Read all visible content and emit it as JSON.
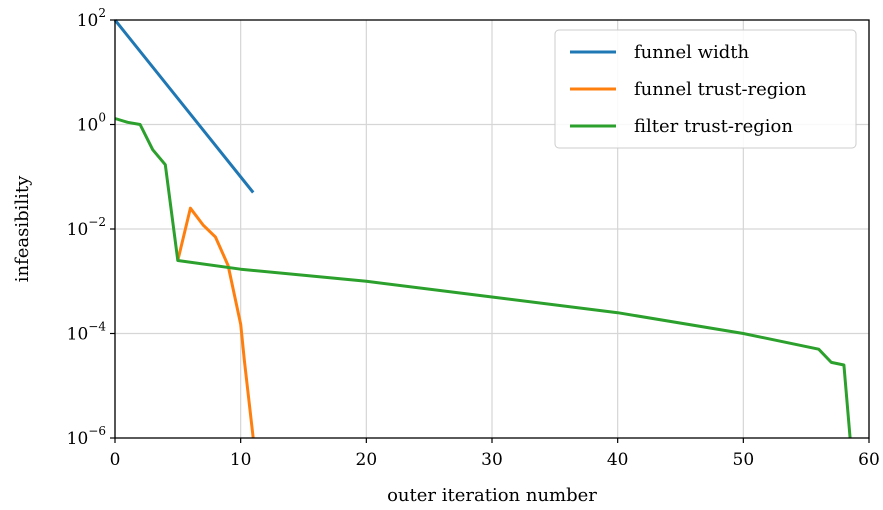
{
  "chart_data": {
    "type": "line",
    "xlabel": "outer iteration number",
    "ylabel": "infeasibility",
    "xlim": [
      0,
      60
    ],
    "ylim": [
      1e-06,
      100
    ],
    "yscale": "log",
    "grid": true,
    "legend_position": "top-right",
    "x_ticks": [
      "0",
      "10",
      "20",
      "30",
      "40",
      "50",
      "60"
    ],
    "y_ticks": [
      {
        "base": "10",
        "exp": "2"
      },
      {
        "base": "10",
        "exp": "0"
      },
      {
        "base": "10",
        "exp": "−2"
      },
      {
        "base": "10",
        "exp": "−4"
      },
      {
        "base": "10",
        "exp": "−6"
      }
    ],
    "series": [
      {
        "name": "funnel width",
        "color": "#1f77b4",
        "x": [
          0,
          11
        ],
        "y": [
          100,
          0.05
        ]
      },
      {
        "name": "funnel trust-region",
        "color": "#ff7f0e",
        "x": [
          5,
          6,
          7,
          8,
          9,
          10,
          10.3,
          11
        ],
        "y": [
          0.0025,
          0.025,
          0.012,
          0.007,
          0.002,
          0.00015,
          3e-05,
          1e-06
        ]
      },
      {
        "name": "filter trust-region",
        "color": "#2ca02c",
        "x": [
          0,
          1,
          2,
          3,
          4,
          5,
          10,
          20,
          30,
          40,
          50,
          56,
          57,
          58,
          58.5
        ],
        "y": [
          1.3,
          1.1,
          1.0,
          0.33,
          0.17,
          0.0025,
          0.0017,
          0.001,
          0.0005,
          0.00025,
          0.0001,
          5e-05,
          2.8e-05,
          2.5e-05,
          1e-06
        ]
      }
    ]
  }
}
